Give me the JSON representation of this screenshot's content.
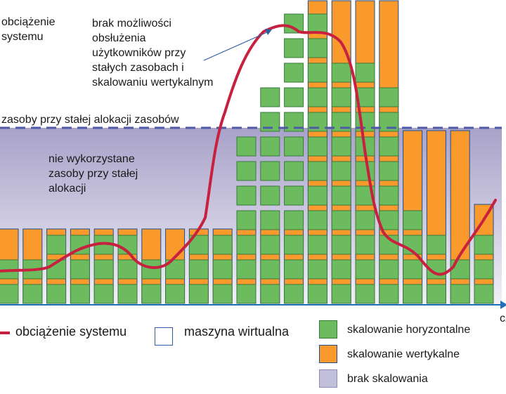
{
  "labels": {
    "load_axis": "obciążenie\nsystemu",
    "time_axis": "cz",
    "fixed_resources_line": "zasoby przy stałej alokacji zasobów",
    "unused_resources": "nie wykorzystane\nzasoby przy stałej\nalokacji",
    "overload_note": "brak możliwości\nobsłużenia\nużytkowników przy\nstałych zasobach i\nskalowaniu wertykalnym"
  },
  "legend": {
    "system_load": "obciążenie systemu",
    "virtual_machine": "maszyna wirtualna",
    "horizontal_scaling": "skalowanie horyzontalne",
    "vertical_scaling": "skalowanie wertykalne",
    "no_scaling": "brak skalowania"
  },
  "colors": {
    "horizontal": "#6cbb5f",
    "horizontal_border": "#3c7a3c",
    "vertical": "#fa9a2d",
    "vertical_border": "#1d4f8a",
    "no_scaling_top": "#a8a2c9",
    "no_scaling_bottom": "#f1f0f7",
    "no_scaling_swatch": "#c2bfdb",
    "load_curve": "#c8213f",
    "fixed_line": "#4e5aa6",
    "axis": "#1f6fb8",
    "arrow": "#2d5fa0"
  },
  "series": {
    "vertical_orange_bar_heights_in_vm_units": [
      3,
      3,
      3,
      3,
      3,
      3,
      3,
      3,
      3,
      3,
      3,
      3,
      3,
      13,
      13,
      13,
      13,
      7,
      7,
      7,
      4
    ],
    "horizontal_green_vm_counts": [
      2,
      2,
      3,
      3,
      3,
      3,
      2,
      2,
      3,
      3,
      7,
      9,
      12,
      12,
      10,
      10,
      9,
      4,
      3,
      2,
      3
    ]
  }
}
